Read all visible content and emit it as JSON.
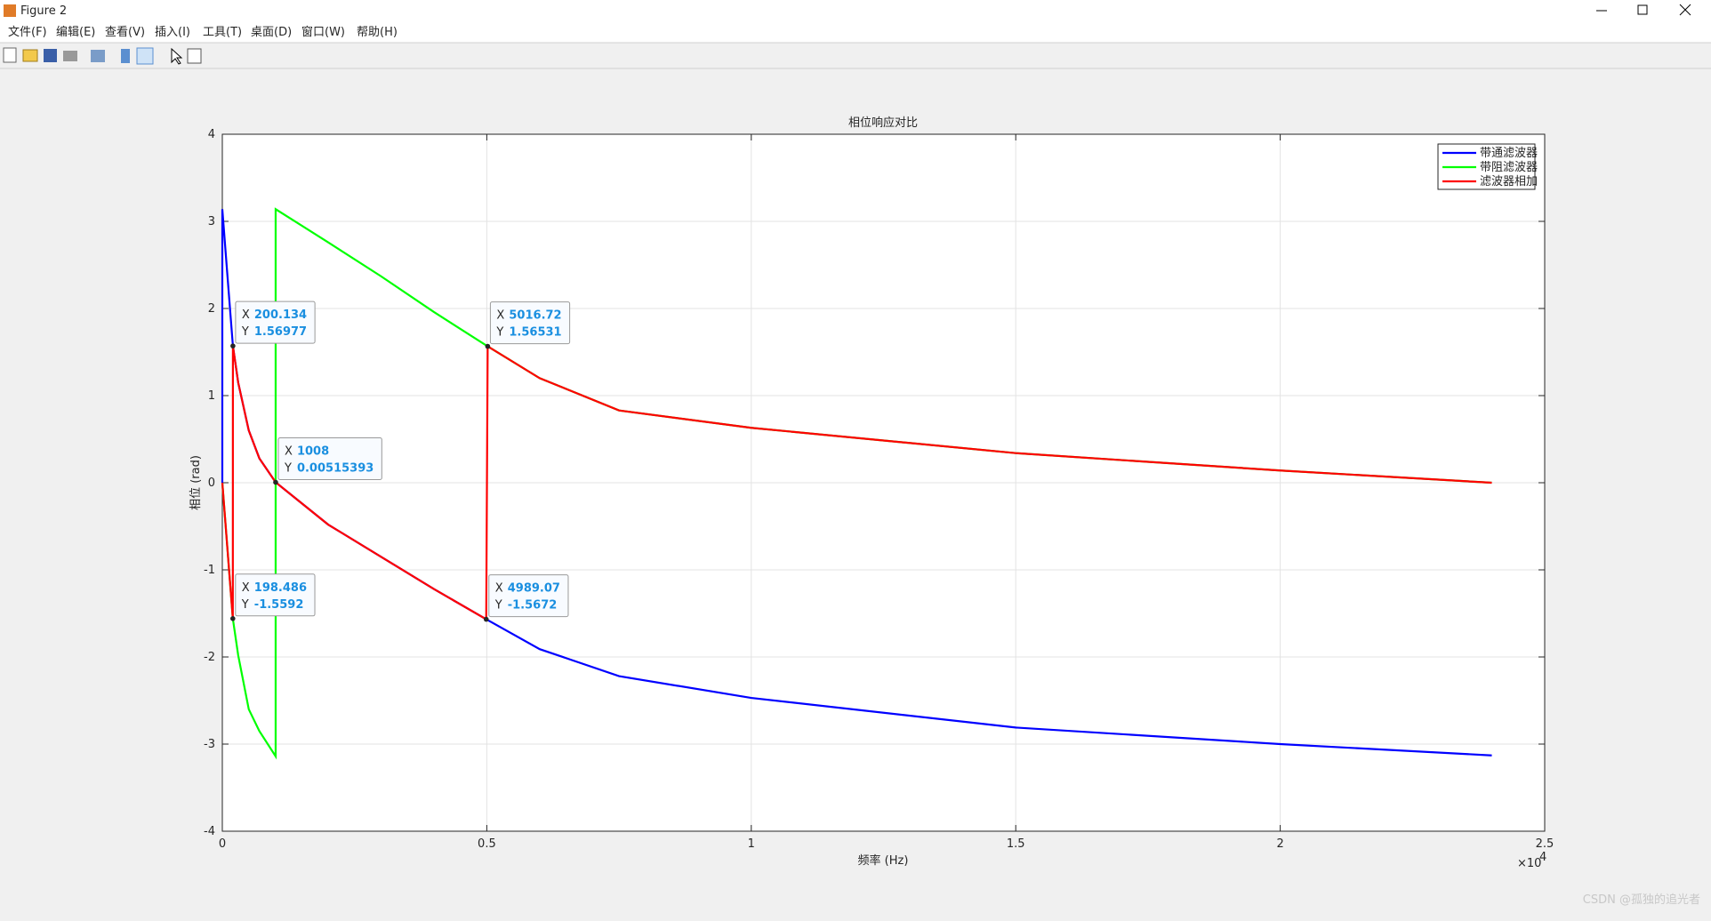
{
  "window": {
    "title": "Figure 2",
    "menu": [
      "文件(F)",
      "编辑(E)",
      "查看(V)",
      "插入(I)",
      "工具(T)",
      "桌面(D)",
      "窗口(W)",
      "帮助(H)"
    ],
    "watermark": "CSDN @孤独的追光者"
  },
  "chart_data": {
    "type": "line",
    "title": "相位响应对比",
    "xlabel": "频率 (Hz)",
    "ylabel": "相位 (rad)",
    "x_multiplier": {
      "base": "×10",
      "exponent": "4"
    },
    "xlim": [
      0,
      25000
    ],
    "ylim": [
      -4,
      4
    ],
    "xticks": [
      0,
      {
        "value": 5000,
        "label": "0.5"
      },
      {
        "value": 10000,
        "label": "1"
      },
      {
        "value": 15000,
        "label": "1.5"
      },
      {
        "value": 20000,
        "label": "2"
      },
      {
        "value": 25000,
        "label": "2.5"
      }
    ],
    "yticks": [
      -4,
      -3,
      -2,
      -1,
      0,
      1,
      2,
      3,
      4
    ],
    "grid": true,
    "legend": "upper right",
    "series": [
      {
        "name": "带通滤波器",
        "color": "#0000ff",
        "x": [
          0,
          0,
          100,
          200.134,
          300,
          500,
          700,
          1008,
          2000,
          3000,
          4000,
          4989.07,
          6000,
          7500,
          10000,
          15000,
          20000,
          24000
        ],
        "values": [
          0,
          3.14,
          2.35,
          1.56977,
          1.15,
          0.6,
          0.28,
          0.00515393,
          -0.48,
          -0.85,
          -1.22,
          -1.5672,
          -1.91,
          -2.22,
          -2.47,
          -2.81,
          -3.0,
          -3.13
        ]
      },
      {
        "name": "带阻滤波器",
        "color": "#00ff00",
        "x": [
          0,
          198.486,
          300,
          500,
          700,
          1008,
          1008,
          2000,
          3000,
          4000,
          5016.72,
          6000,
          7500,
          10000,
          15000,
          20000,
          24000
        ],
        "values": [
          0,
          -1.5592,
          -1.98,
          -2.6,
          -2.85,
          -3.14,
          3.14,
          2.76,
          2.37,
          1.96,
          1.56531,
          1.2,
          0.83,
          0.63,
          0.34,
          0.14,
          0
        ]
      },
      {
        "name": "滤波器相加",
        "color": "#ff0000",
        "x": [
          0,
          198.486,
          200.134,
          300,
          500,
          700,
          1008,
          2000,
          3000,
          4000,
          4989.07,
          5016.72,
          6000,
          7500,
          10000,
          15000,
          20000,
          24000
        ],
        "values": [
          0,
          -1.5592,
          1.56977,
          1.15,
          0.6,
          0.28,
          0.00515393,
          -0.48,
          -0.85,
          -1.22,
          -1.5672,
          1.56531,
          1.2,
          0.83,
          0.63,
          0.34,
          0.14,
          0
        ]
      }
    ],
    "datatip_labels": {
      "x": "X",
      "y": "Y"
    },
    "datatips": [
      {
        "x": 200.134,
        "y": 1.56977
      },
      {
        "x": 1008,
        "y": 0.00515393
      },
      {
        "x": 198.486,
        "y": -1.5592
      },
      {
        "x": 5016.72,
        "y": 1.56531
      },
      {
        "x": 4989.07,
        "y": -1.5672
      }
    ]
  }
}
